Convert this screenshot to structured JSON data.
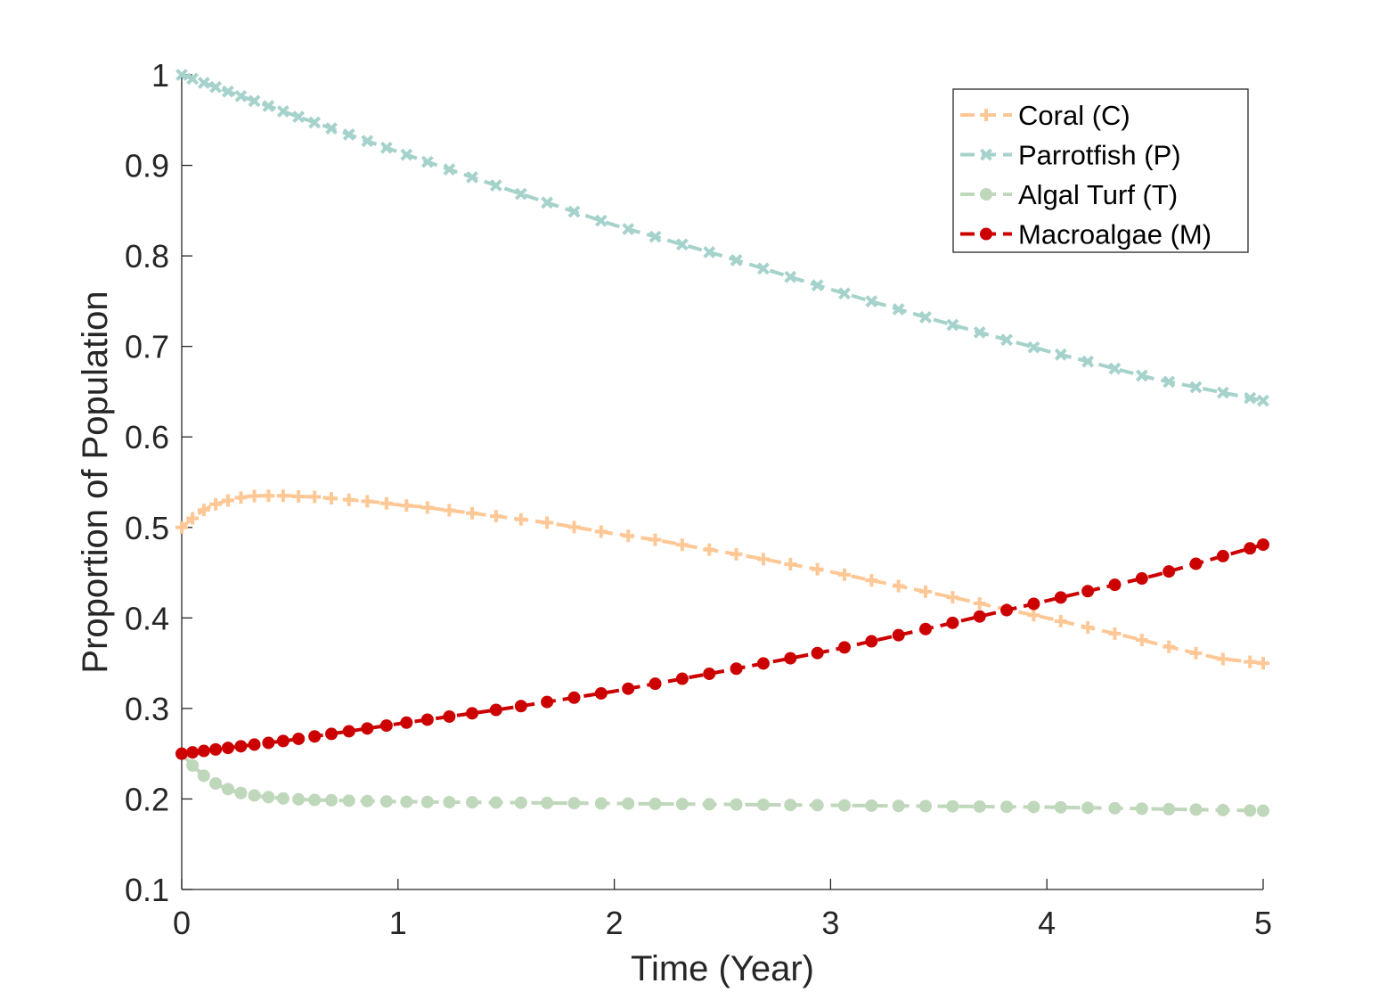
{
  "chart_data": {
    "type": "line",
    "title": "",
    "xlabel": "Time (Year)",
    "ylabel": "Proportion of Population",
    "xlim": [
      0,
      5
    ],
    "ylim": [
      0.1,
      1
    ],
    "xticks": [
      0,
      1,
      2,
      3,
      4,
      5
    ],
    "yticks": [
      0.1,
      0.2,
      0.3,
      0.4,
      0.5,
      0.6,
      0.7,
      0.8,
      0.9,
      1
    ],
    "xtick_labels": [
      "0",
      "1",
      "2",
      "3",
      "4",
      "5"
    ],
    "ytick_labels": [
      "0.1",
      "0.2",
      "0.3",
      "0.4",
      "0.5",
      "0.6",
      "0.7",
      "0.8",
      "0.9",
      "1"
    ],
    "grid": false,
    "legend_position": "top-right",
    "series": [
      {
        "name": "Coral (C)",
        "color": "#FDC896",
        "marker": "plus",
        "line_style": "dashed",
        "x": [
          0,
          0.05,
          0.1,
          0.15,
          0.2,
          0.25,
          0.3,
          0.35,
          0.4,
          0.45,
          0.5,
          0.55,
          0.6,
          0.7,
          0.8,
          0.9,
          1.0,
          1.1,
          1.2,
          1.3,
          1.4,
          1.5,
          1.6,
          1.7,
          1.8,
          1.9,
          2.0,
          2.2,
          2.4,
          2.6,
          2.8,
          3.0,
          3.2,
          3.4,
          3.6,
          3.8,
          4.0,
          4.2,
          4.4,
          4.6,
          4.8,
          5.0
        ],
        "y": [
          0.5,
          0.51,
          0.519,
          0.525,
          0.529,
          0.532,
          0.534,
          0.535,
          0.535,
          0.535,
          0.535,
          0.534,
          0.534,
          0.532,
          0.53,
          0.528,
          0.525,
          0.523,
          0.52,
          0.517,
          0.514,
          0.511,
          0.508,
          0.505,
          0.501,
          0.497,
          0.493,
          0.486,
          0.477,
          0.469,
          0.46,
          0.451,
          0.441,
          0.431,
          0.421,
          0.41,
          0.4,
          0.389,
          0.378,
          0.366,
          0.355,
          0.35
        ]
      },
      {
        "name": "Parrotfish (P)",
        "color": "#A6D2CC",
        "marker": "x",
        "line_style": "dashed",
        "x": [
          0,
          0.5,
          1.0,
          1.5,
          2.0,
          2.5,
          3.0,
          3.5,
          4.0,
          4.5,
          5.0
        ],
        "y": [
          1.0,
          0.957,
          0.915,
          0.874,
          0.834,
          0.8,
          0.763,
          0.728,
          0.695,
          0.664,
          0.64
        ]
      },
      {
        "name": "Algal Turf (T)",
        "color": "#BFD7BA",
        "marker": "circle",
        "line_style": "dashed",
        "x": [
          0,
          0.05,
          0.1,
          0.15,
          0.2,
          0.25,
          0.3,
          0.4,
          0.5,
          0.6,
          0.8,
          1.0,
          1.5,
          2.0,
          2.5,
          3.0,
          3.5,
          4.0,
          4.5,
          5.0
        ],
        "y": [
          0.25,
          0.237,
          0.226,
          0.218,
          0.212,
          0.208,
          0.205,
          0.202,
          0.2,
          0.199,
          0.198,
          0.197,
          0.196,
          0.195,
          0.194,
          0.193,
          0.192,
          0.191,
          0.189,
          0.187
        ]
      },
      {
        "name": "Macroalgae (M)",
        "color": "#CC0000",
        "marker": "filled-circle",
        "line_style": "dashed",
        "x": [
          0,
          0.5,
          1.0,
          1.5,
          2.0,
          2.5,
          3.0,
          3.5,
          4.0,
          4.5,
          5.0
        ],
        "y": [
          0.25,
          0.265,
          0.283,
          0.3,
          0.319,
          0.341,
          0.364,
          0.391,
          0.419,
          0.447,
          0.481
        ]
      }
    ]
  }
}
